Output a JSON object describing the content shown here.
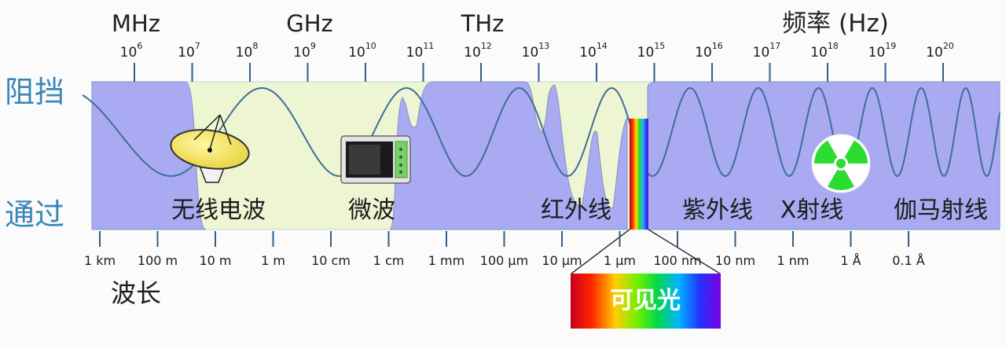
{
  "bands": [
    {
      "label": "MHz"
    },
    {
      "label": "GHz"
    },
    {
      "label": "THz"
    }
  ],
  "frequency_title": "频率 (Hz)",
  "frequency_ticks": [
    {
      "base": "10",
      "exp": "6"
    },
    {
      "base": "10",
      "exp": "7"
    },
    {
      "base": "10",
      "exp": "8"
    },
    {
      "base": "10",
      "exp": "9"
    },
    {
      "base": "10",
      "exp": "10"
    },
    {
      "base": "10",
      "exp": "11"
    },
    {
      "base": "10",
      "exp": "12"
    },
    {
      "base": "10",
      "exp": "13"
    },
    {
      "base": "10",
      "exp": "14"
    },
    {
      "base": "10",
      "exp": "15"
    },
    {
      "base": "10",
      "exp": "16"
    },
    {
      "base": "10",
      "exp": "17"
    },
    {
      "base": "10",
      "exp": "18"
    },
    {
      "base": "10",
      "exp": "19"
    },
    {
      "base": "10",
      "exp": "20"
    }
  ],
  "side_labels": {
    "block": "阻挡",
    "pass": "通过"
  },
  "regions": [
    {
      "label": "无线电波"
    },
    {
      "label": "微波"
    },
    {
      "label": "红外线"
    },
    {
      "label": "紫外线"
    },
    {
      "label": "X射线"
    },
    {
      "label": "伽马射线"
    }
  ],
  "wavelength_title": "波长",
  "wavelength_ticks": [
    "1 km",
    "100 m",
    "10 m",
    "1 m",
    "10 cm",
    "1 cm",
    "1 mm",
    "100 μm",
    "10 μm",
    "1 μm",
    "100 nm",
    "10 nm",
    "1 nm",
    "1 Å",
    "0.1 Å"
  ],
  "visible_label": "可见光",
  "colors": {
    "opaque": "#aaaaf2",
    "transparent": "#eef5d2",
    "wave": "#3d6f98",
    "axis": "#2e5f8a",
    "side_label": "#3b86b8"
  }
}
